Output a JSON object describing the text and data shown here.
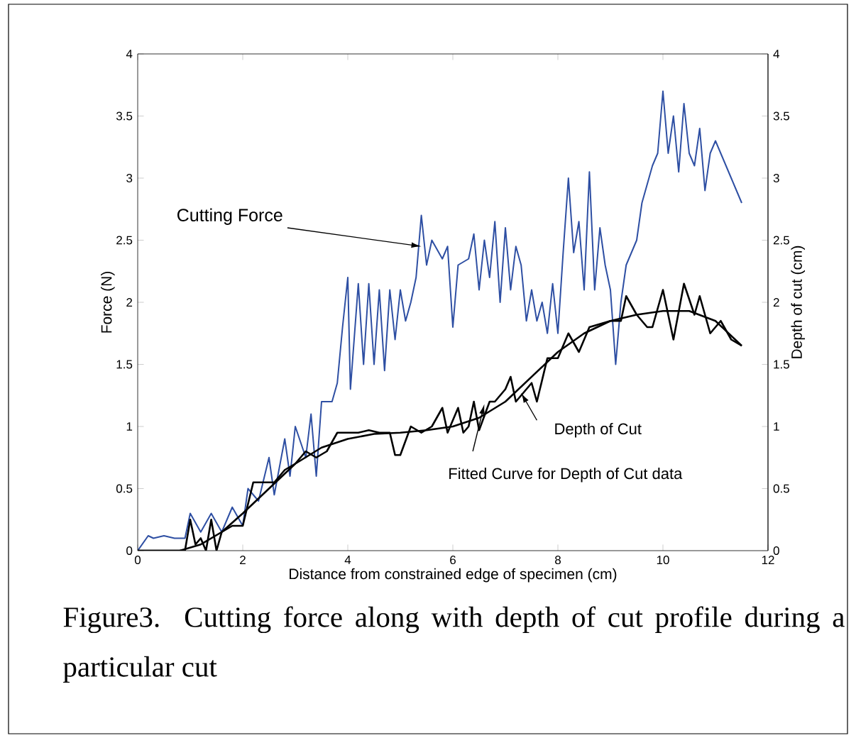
{
  "chart_data": {
    "type": "line",
    "xlabel": "Distance from constrained edge of specimen (cm)",
    "ylabel": "Force (N)",
    "y2label": "Depth of cut (cm)",
    "xlim": [
      0,
      12
    ],
    "xticks": [
      0,
      2,
      4,
      6,
      8,
      10,
      12
    ],
    "ylim": [
      0,
      4
    ],
    "yticks": [
      0,
      0.5,
      1,
      1.5,
      2,
      2.5,
      3,
      3.5,
      4
    ],
    "y2lim": [
      0,
      4
    ],
    "y2ticks": [
      0,
      0.5,
      1,
      1.5,
      2,
      2.5,
      3,
      3.5,
      4
    ],
    "marker": "none",
    "line_style": "solid",
    "series": [
      {
        "color": "#2e4fa3",
        "x": [
          0,
          0.2,
          0.3,
          0.5,
          0.7,
          0.9,
          1.0,
          1.2,
          1.4,
          1.6,
          1.8,
          2.0,
          2.1,
          2.3,
          2.5,
          2.6,
          2.8,
          2.9,
          3.0,
          3.2,
          3.3,
          3.4,
          3.5,
          3.7,
          3.8,
          3.9,
          4.0,
          4.05,
          4.2,
          4.3,
          4.4,
          4.5,
          4.6,
          4.7,
          4.8,
          4.9,
          5.0,
          5.1,
          5.2,
          5.3,
          5.4,
          5.5,
          5.6,
          5.8,
          5.9,
          6.0,
          6.1,
          6.3,
          6.4,
          6.5,
          6.6,
          6.7,
          6.8,
          6.9,
          7.0,
          7.1,
          7.2,
          7.3,
          7.4,
          7.5,
          7.6,
          7.7,
          7.8,
          7.9,
          8.0,
          8.1,
          8.2,
          8.3,
          8.4,
          8.5,
          8.6,
          8.7,
          8.8,
          8.9,
          9.0,
          9.1,
          9.2,
          9.3,
          9.5,
          9.6,
          9.8,
          9.9,
          10.0,
          10.1,
          10.2,
          10.3,
          10.4,
          10.5,
          10.6,
          10.7,
          10.8,
          10.9,
          11.0,
          11.1,
          11.3,
          11.4,
          11.5
        ],
        "values": [
          0,
          0.12,
          0.1,
          0.12,
          0.1,
          0.1,
          0.3,
          0.15,
          0.3,
          0.15,
          0.35,
          0.2,
          0.5,
          0.4,
          0.75,
          0.45,
          0.9,
          0.6,
          1.0,
          0.75,
          1.1,
          0.6,
          1.2,
          1.2,
          1.35,
          1.8,
          2.2,
          1.3,
          2.15,
          1.5,
          2.15,
          1.5,
          2.1,
          1.45,
          2.1,
          1.7,
          2.1,
          1.85,
          2.0,
          2.2,
          2.7,
          2.3,
          2.5,
          2.35,
          2.45,
          1.8,
          2.3,
          2.35,
          2.55,
          2.1,
          2.5,
          2.2,
          2.65,
          2.0,
          2.6,
          2.1,
          2.45,
          2.3,
          1.85,
          2.1,
          1.85,
          2.0,
          1.75,
          2.15,
          1.75,
          2.4,
          3.0,
          2.4,
          2.65,
          2.1,
          3.05,
          2.1,
          2.6,
          2.3,
          2.1,
          1.5,
          2.0,
          2.3,
          2.5,
          2.8,
          3.1,
          3.2,
          3.7,
          3.2,
          3.5,
          3.05,
          3.6,
          3.2,
          3.1,
          3.4,
          2.9,
          3.2,
          3.3,
          3.2,
          3.0,
          2.9,
          2.8
        ]
      },
      {
        "color": "#000000",
        "axis": "y2",
        "x": [
          0,
          0.9,
          1.0,
          1.1,
          1.2,
          1.3,
          1.4,
          1.5,
          1.6,
          1.8,
          2.0,
          2.2,
          2.4,
          2.6,
          2.8,
          3.0,
          3.2,
          3.4,
          3.6,
          3.8,
          4.0,
          4.2,
          4.4,
          4.6,
          4.8,
          4.9,
          5.0,
          5.2,
          5.4,
          5.6,
          5.8,
          5.9,
          6.1,
          6.2,
          6.3,
          6.4,
          6.5,
          6.7,
          6.8,
          7.0,
          7.1,
          7.2,
          7.3,
          7.5,
          7.6,
          7.8,
          8.0,
          8.2,
          8.4,
          8.6,
          9.0,
          9.2,
          9.3,
          9.5,
          9.7,
          9.8,
          10.0,
          10.2,
          10.4,
          10.6,
          10.7,
          10.9,
          11.1,
          11.3,
          11.5
        ],
        "values": [
          0,
          0,
          0.25,
          0.05,
          0.1,
          0,
          0.25,
          0,
          0.15,
          0.2,
          0.2,
          0.55,
          0.55,
          0.55,
          0.65,
          0.7,
          0.8,
          0.75,
          0.8,
          0.95,
          0.95,
          0.95,
          0.97,
          0.95,
          0.95,
          0.77,
          0.77,
          1.0,
          0.95,
          1.0,
          1.15,
          0.95,
          1.15,
          0.95,
          1.0,
          1.2,
          0.97,
          1.2,
          1.2,
          1.3,
          1.4,
          1.2,
          1.25,
          1.35,
          1.2,
          1.55,
          1.55,
          1.75,
          1.6,
          1.8,
          1.85,
          1.85,
          2.05,
          1.9,
          1.8,
          1.8,
          2.1,
          1.7,
          2.15,
          1.9,
          2.05,
          1.75,
          1.85,
          1.7,
          1.65
        ]
      },
      {
        "color": "#000000",
        "axis": "y2",
        "x": [
          0,
          0.8,
          1.2,
          1.6,
          2.0,
          2.5,
          3.0,
          3.5,
          4.0,
          4.5,
          5.0,
          5.5,
          6.0,
          6.5,
          7.0,
          7.5,
          8.0,
          8.5,
          9.0,
          9.5,
          10.0,
          10.5,
          11.0,
          11.5
        ],
        "values": [
          0,
          0,
          0.05,
          0.15,
          0.3,
          0.5,
          0.7,
          0.83,
          0.9,
          0.94,
          0.95,
          0.97,
          1.0,
          1.07,
          1.2,
          1.4,
          1.6,
          1.75,
          1.85,
          1.9,
          1.93,
          1.93,
          1.85,
          1.65
        ]
      }
    ],
    "annotations": [
      {
        "text": "Cutting Force",
        "x": 5.4,
        "y": 2.45
      },
      {
        "text": "Depth of Cut",
        "x": 7.3,
        "y": 1.27
      },
      {
        "text": "Fitted Curve for Depth of Cut data",
        "x": 6.6,
        "y": 1.18
      },
      "Figure3.  Cutting force along with depth of cut profile during a particular cut"
    ]
  }
}
